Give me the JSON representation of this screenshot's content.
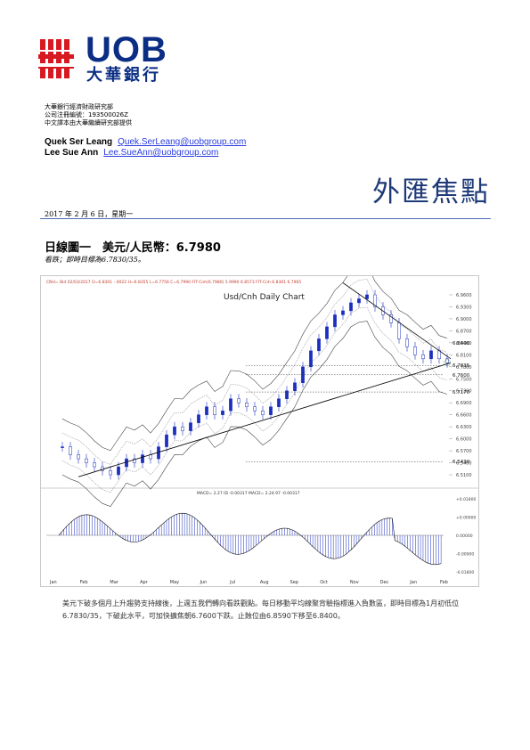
{
  "brand": {
    "name_en": "UOB",
    "name_zh": "大華銀行",
    "color": "#0b2d84",
    "accent": "#d71921"
  },
  "header": {
    "org_line1": "大華銀行經濟財政研究部",
    "org_line2": "公司注冊編號：193500026Z",
    "org_line3": "中文譯本由大華繼續研究部提供"
  },
  "authors": [
    {
      "name": "Quek Ser Leang",
      "email": "Quek.SerLeang@uobgroup.com"
    },
    {
      "name": "Lee Sue Ann",
      "email": "Lee.SueAnn@uobgroup.com"
    }
  ],
  "report_title": "外匯焦點",
  "date_line": "2017 年 2 月 6 日，星期一",
  "figure": {
    "title": "日線圖一　美元/人民幣：6.7980",
    "subtitle": "看跌；即時目標為6.7830/35。"
  },
  "chart_data": {
    "type": "line",
    "title": "Usd/Cnh Daily Chart",
    "header_text": "CNH= Bid   02/03/2017  O=6.8301  -.0022  H=6.8355  L=6.7756  C=6.7990  FIT-Cnh(6.7980)  5.9990  6.8573  FIT-Cnh  6.8301  6.7965",
    "macd_label": "MACD= 2.27 ID  -0.00317  MACD= 2.24.97  -0.00317",
    "x_labels": [
      "Jan",
      "Feb",
      "Mar",
      "Apr",
      "May",
      "Jun",
      "Jul",
      "Aug",
      "Sep",
      "Oct",
      "Nov",
      "Dec",
      "Jan",
      "Feb"
    ],
    "y_ticks": [
      "6.9600",
      "6.9300",
      "6.9000",
      "6.8700",
      "6.8400",
      "6.8100",
      "6.7800",
      "6.7500",
      "6.7200",
      "6.6900",
      "6.6600",
      "6.6300",
      "6.6000",
      "6.5700",
      "6.5400",
      "6.5100"
    ],
    "price_close": [
      6.58,
      6.56,
      6.55,
      6.54,
      6.53,
      6.52,
      6.51,
      6.53,
      6.55,
      6.54,
      6.56,
      6.55,
      6.58,
      6.61,
      6.63,
      6.62,
      6.64,
      6.66,
      6.68,
      6.66,
      6.67,
      6.7,
      6.69,
      6.68,
      6.67,
      6.66,
      6.68,
      6.7,
      6.72,
      6.74,
      6.78,
      6.82,
      6.85,
      6.88,
      6.91,
      6.92,
      6.94,
      6.95,
      6.96,
      6.93,
      6.91,
      6.89,
      6.85,
      6.83,
      6.81,
      6.8,
      6.82,
      6.8,
      6.79
    ],
    "annotations": [
      "6.8400",
      "6.7835",
      "6.7600",
      "6.7170",
      "6.5430"
    ],
    "macd_ticks": [
      "+0.01800",
      "+0.00900",
      "0.00000",
      "-0.00900",
      "-0.01800"
    ]
  },
  "commentary": "美元下破多個月上升趨勢支持線後，上週五我們轉向看跌觀點。每日移動平均線聚背驗指標進入負數區，即時目標為1月初低位6.7830/35，下破此水平，可加快擴焦朝6.7600下跌。止蝕位由6.8590下移至6.8400。"
}
